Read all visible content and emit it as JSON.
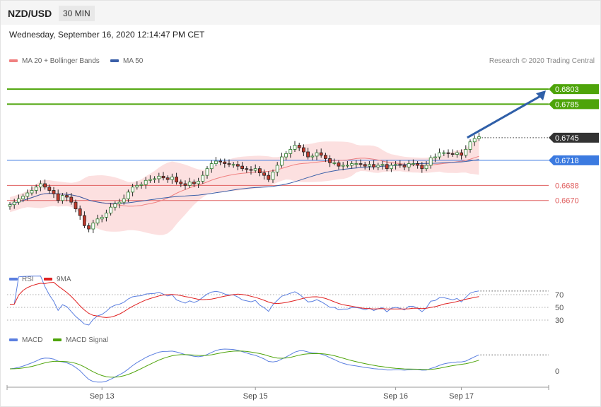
{
  "header": {
    "pair": "NZD/USD",
    "timeframe": "30 MIN",
    "datetime": "Wednesday, September 16, 2020 12:14:47 PM CET"
  },
  "legend": {
    "ma20": "MA 20 + Bollinger Bands",
    "ma50": "MA 50",
    "credit": "Research © 2020 Trading Central",
    "rsi": "RSI",
    "rsi_ma": "9MA",
    "macd": "MACD",
    "macd_signal": "MACD Signal"
  },
  "colors": {
    "ma20": "#f08080",
    "ma50": "#3a5fa8",
    "bull": "#2d7d2d",
    "bear": "#c0392b",
    "band": "#fbd6d6",
    "target": "#4ea40a",
    "pivot": "#3b7ae0",
    "support": "#e06060",
    "price_tag": "#333333",
    "arrow": "#2f5fa8",
    "rsi": "#5b7fe0",
    "rsi_ma": "#e02020",
    "macd": "#5b7fe0",
    "macd_signal": "#4ea40a"
  },
  "chart_data": [
    {
      "type": "candlestick",
      "title": "NZD/USD",
      "x_ticks": [
        "Sep 13",
        "Sep 15",
        "Sep 16",
        "Sep 17"
      ],
      "x_tick_index": [
        21,
        56,
        88,
        103
      ],
      "ylim": [
        0.6593,
        0.6825
      ],
      "levels": [
        {
          "label": "0.6803",
          "value": 0.6803,
          "kind": "target"
        },
        {
          "label": "0.6785",
          "value": 0.6785,
          "kind": "target"
        },
        {
          "label": "0.6745",
          "value": 0.6745,
          "kind": "price"
        },
        {
          "label": "0.6718",
          "value": 0.6718,
          "kind": "pivot"
        },
        {
          "label": "0.6688",
          "value": 0.6688,
          "kind": "support"
        },
        {
          "label": "0.6670",
          "value": 0.667,
          "kind": "support"
        }
      ],
      "forecast_arrow": {
        "from": [
          104,
          0.6745
        ],
        "to": [
          112,
          0.6803
        ]
      },
      "close": [
        0.6665,
        0.6668,
        0.6672,
        0.6675,
        0.6679,
        0.6682,
        0.6686,
        0.669,
        0.6686,
        0.6682,
        0.6678,
        0.667,
        0.6676,
        0.6674,
        0.6668,
        0.666,
        0.6652,
        0.664,
        0.6636,
        0.6643,
        0.6648,
        0.665,
        0.6655,
        0.6662,
        0.6666,
        0.6668,
        0.6672,
        0.668,
        0.6686,
        0.6688,
        0.6689,
        0.6694,
        0.6695,
        0.6696,
        0.6699,
        0.6697,
        0.6695,
        0.6698,
        0.6692,
        0.669,
        0.6688,
        0.6692,
        0.669,
        0.6693,
        0.67,
        0.6708,
        0.6714,
        0.6717,
        0.6716,
        0.6714,
        0.6713,
        0.6713,
        0.6711,
        0.6708,
        0.6707,
        0.6706,
        0.6708,
        0.6703,
        0.67,
        0.6695,
        0.6704,
        0.6712,
        0.6722,
        0.6726,
        0.6731,
        0.6736,
        0.6733,
        0.6728,
        0.6722,
        0.6723,
        0.6727,
        0.6724,
        0.672,
        0.6715,
        0.6715,
        0.6711,
        0.6712,
        0.6712,
        0.6714,
        0.6714,
        0.6713,
        0.6711,
        0.6713,
        0.671,
        0.6712,
        0.6713,
        0.6708,
        0.6712,
        0.6713,
        0.6712,
        0.671,
        0.6714,
        0.6714,
        0.6712,
        0.6708,
        0.6712,
        0.6721,
        0.6722,
        0.6727,
        0.6727,
        0.6726,
        0.6725,
        0.6727,
        0.6724,
        0.6731,
        0.674,
        0.6744,
        0.6746
      ],
      "ma20_last": 0.6722,
      "ma50_last": 0.672
    },
    {
      "type": "line",
      "name": "RSI",
      "y_ticks": [
        70,
        50,
        30
      ],
      "ylim": [
        20,
        80
      ]
    },
    {
      "type": "line",
      "name": "MACD",
      "y_ticks": [
        0
      ]
    }
  ]
}
